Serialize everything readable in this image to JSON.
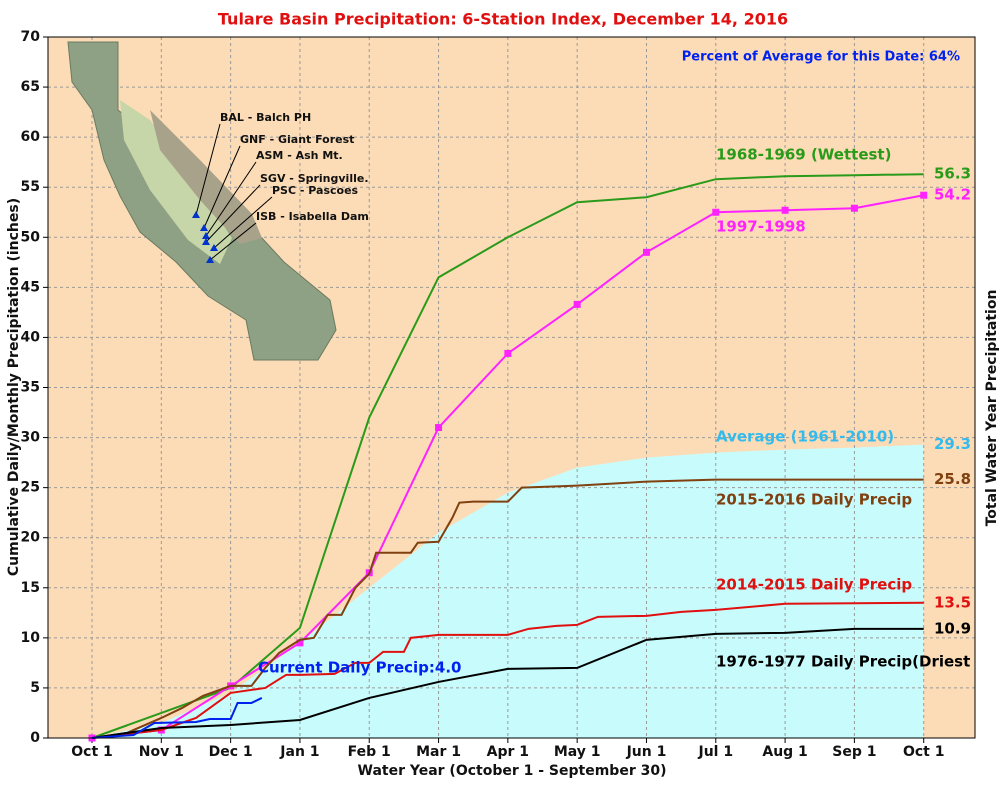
{
  "chart_data": {
    "type": "line",
    "title": "Tulare Basin Precipitation: 6-Station Index, December 14, 2016",
    "subtitle": "Percent of Average for this Date: 64%",
    "x_label": "Water Year (October 1 - September 30)",
    "y_label": "Cumulative Daily/Monthly Precipitation (inches)",
    "y2_label": "Total Water Year Precipitation",
    "xlim": [
      -0.635,
      12.74
    ],
    "xticks": [
      {
        "value": 0,
        "label": "Oct 1"
      },
      {
        "value": 1,
        "label": "Nov 1"
      },
      {
        "value": 2,
        "label": "Dec 1"
      },
      {
        "value": 3,
        "label": "Jan 1"
      },
      {
        "value": 4,
        "label": "Feb 1"
      },
      {
        "value": 5,
        "label": "Mar 1"
      },
      {
        "value": 6,
        "label": "Apr 1"
      },
      {
        "value": 7,
        "label": "May 1"
      },
      {
        "value": 8,
        "label": "Jun 1"
      },
      {
        "value": 9,
        "label": "Jul 1"
      },
      {
        "value": 10,
        "label": "Aug 1"
      },
      {
        "value": 11,
        "label": "Sep 1"
      },
      {
        "value": 12,
        "label": "Oct 1"
      }
    ],
    "ylim": [
      0,
      70
    ],
    "yticks": [
      0,
      5,
      10,
      15,
      20,
      25,
      30,
      35,
      40,
      45,
      50,
      55,
      60,
      65,
      70
    ],
    "grid": true,
    "background": "#fcdcb6",
    "series": [
      {
        "name": "Average (1961-2010)",
        "color": "#c8fcfc",
        "label_color": "#33bbee",
        "fill": true,
        "x": [
          0,
          1,
          2,
          3,
          4,
          5,
          6,
          7,
          8,
          9,
          10,
          11,
          12
        ],
        "values": [
          0,
          1.5,
          4.5,
          9.5,
          15,
          20.5,
          24.5,
          27,
          28,
          28.5,
          28.8,
          29,
          29.3
        ]
      },
      {
        "name": "1968-1969 (Wettest)",
        "color": "#2a9a1a",
        "x": [
          0,
          1,
          2,
          3,
          4,
          5,
          6,
          7,
          8,
          9,
          10,
          11,
          12
        ],
        "values": [
          0,
          2.5,
          5,
          11,
          32,
          46,
          50,
          53.5,
          54,
          55.8,
          56.1,
          56.2,
          56.3
        ]
      },
      {
        "name": "1997-1998",
        "color": "#ff22ff",
        "markers": true,
        "x": [
          0,
          1,
          2,
          3,
          4,
          5,
          6,
          7,
          8,
          9,
          10,
          11,
          12
        ],
        "values": [
          0,
          0.8,
          5.2,
          9.5,
          16.5,
          31,
          38.4,
          43.3,
          48.5,
          52.5,
          52.7,
          52.9,
          54.2
        ]
      },
      {
        "name": "2015-2016 Daily Precip",
        "color": "#804010",
        "x": [
          0,
          0.5,
          1,
          1.3,
          1.6,
          2,
          2.3,
          2.5,
          2.7,
          3,
          3.2,
          3.4,
          3.6,
          3.8,
          4,
          4.1,
          4.6,
          4.7,
          5,
          5.2,
          5.3,
          5.5,
          6,
          6.2,
          7,
          8,
          9,
          12
        ],
        "values": [
          0,
          0.5,
          2,
          3,
          4.2,
          5.2,
          5.2,
          7,
          8.5,
          9.8,
          10,
          12.3,
          12.3,
          15,
          16.4,
          18.5,
          18.5,
          19.5,
          19.6,
          22,
          23.5,
          23.6,
          23.6,
          25,
          25.2,
          25.6,
          25.8,
          25.8
        ]
      },
      {
        "name": "2014-2015 Daily Precip",
        "color": "#e01010",
        "x": [
          0,
          1,
          1.5,
          2,
          2.5,
          2.8,
          3,
          3.5,
          3.8,
          4,
          4.2,
          4.5,
          4.6,
          5,
          6,
          6.3,
          6.7,
          7,
          7.3,
          8,
          8.5,
          9,
          10,
          12
        ],
        "values": [
          0,
          0.8,
          2,
          4.5,
          5,
          6.3,
          6.3,
          6.4,
          7.5,
          7.5,
          8.6,
          8.6,
          10,
          10.3,
          10.3,
          10.9,
          11.2,
          11.3,
          12.1,
          12.2,
          12.6,
          12.8,
          13.4,
          13.5
        ]
      },
      {
        "name": "1976-1977 Daily Precip(Driest",
        "color": "#000000",
        "x": [
          0,
          1,
          2,
          3,
          4,
          5,
          6,
          7,
          8,
          9,
          10,
          11,
          12
        ],
        "values": [
          0,
          1,
          1.3,
          1.8,
          4,
          5.6,
          6.9,
          7,
          9.8,
          10.4,
          10.5,
          10.9,
          10.9
        ]
      },
      {
        "name": "Current Daily Precip:4.0",
        "color": "#0022ee",
        "x": [
          0,
          0.6,
          0.9,
          1.5,
          1.7,
          2,
          2.1,
          2.3,
          2.45
        ],
        "values": [
          0,
          0.3,
          1.5,
          1.6,
          1.9,
          1.9,
          3.5,
          3.5,
          4
        ]
      }
    ],
    "map_labels": [
      "BAL - Balch PH",
      "GNF - Giant Forest",
      "ASM - Ash Mt.",
      "SGV - Springville.",
      "PSC - Pascoes",
      "ISB - Isabella Dam"
    ]
  }
}
